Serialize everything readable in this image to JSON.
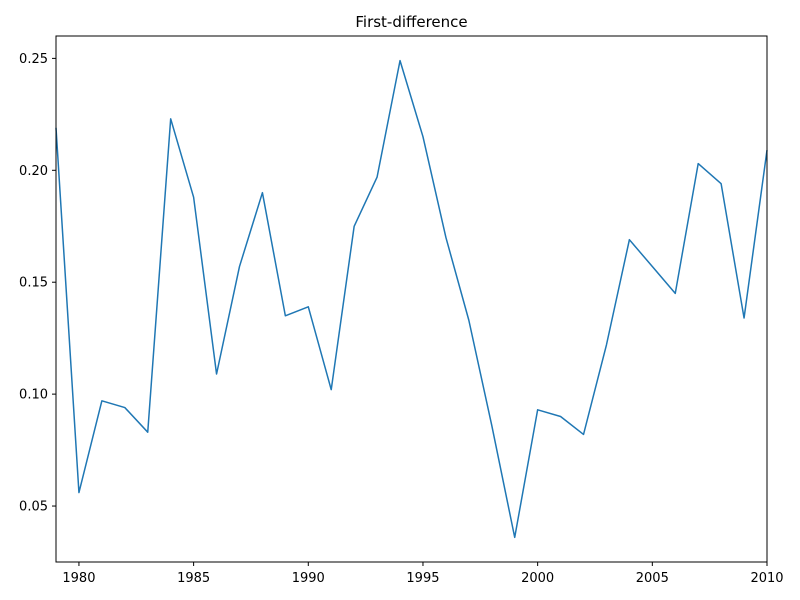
{
  "chart_data": {
    "type": "line",
    "title": "First-difference",
    "xlabel": "",
    "ylabel": "",
    "xlim": [
      1979,
      2010
    ],
    "ylim": [
      0.025,
      0.26
    ],
    "grid": false,
    "x_ticks": [
      1980,
      1985,
      1990,
      1995,
      2000,
      2005,
      2010
    ],
    "y_ticks": [
      0.05,
      0.1,
      0.15,
      0.2,
      0.25
    ],
    "series": [
      {
        "color": "#1f77b4",
        "x": [
          1979,
          1980,
          1981,
          1982,
          1983,
          1984,
          1985,
          1986,
          1987,
          1988,
          1989,
          1990,
          1991,
          1992,
          1993,
          1994,
          1995,
          1996,
          1997,
          1998,
          1999,
          2000,
          2001,
          2002,
          2003,
          2004,
          2005,
          2006,
          2007,
          2008,
          2009,
          2010
        ],
        "values": [
          0.219,
          0.056,
          0.097,
          0.094,
          0.083,
          0.223,
          0.188,
          0.109,
          0.157,
          0.19,
          0.135,
          0.139,
          0.102,
          0.175,
          0.197,
          0.249,
          0.215,
          0.17,
          0.133,
          0.086,
          0.036,
          0.093,
          0.09,
          0.082,
          0.122,
          0.169,
          0.157,
          0.145,
          0.203,
          0.194,
          0.134,
          0.209
        ]
      }
    ]
  }
}
